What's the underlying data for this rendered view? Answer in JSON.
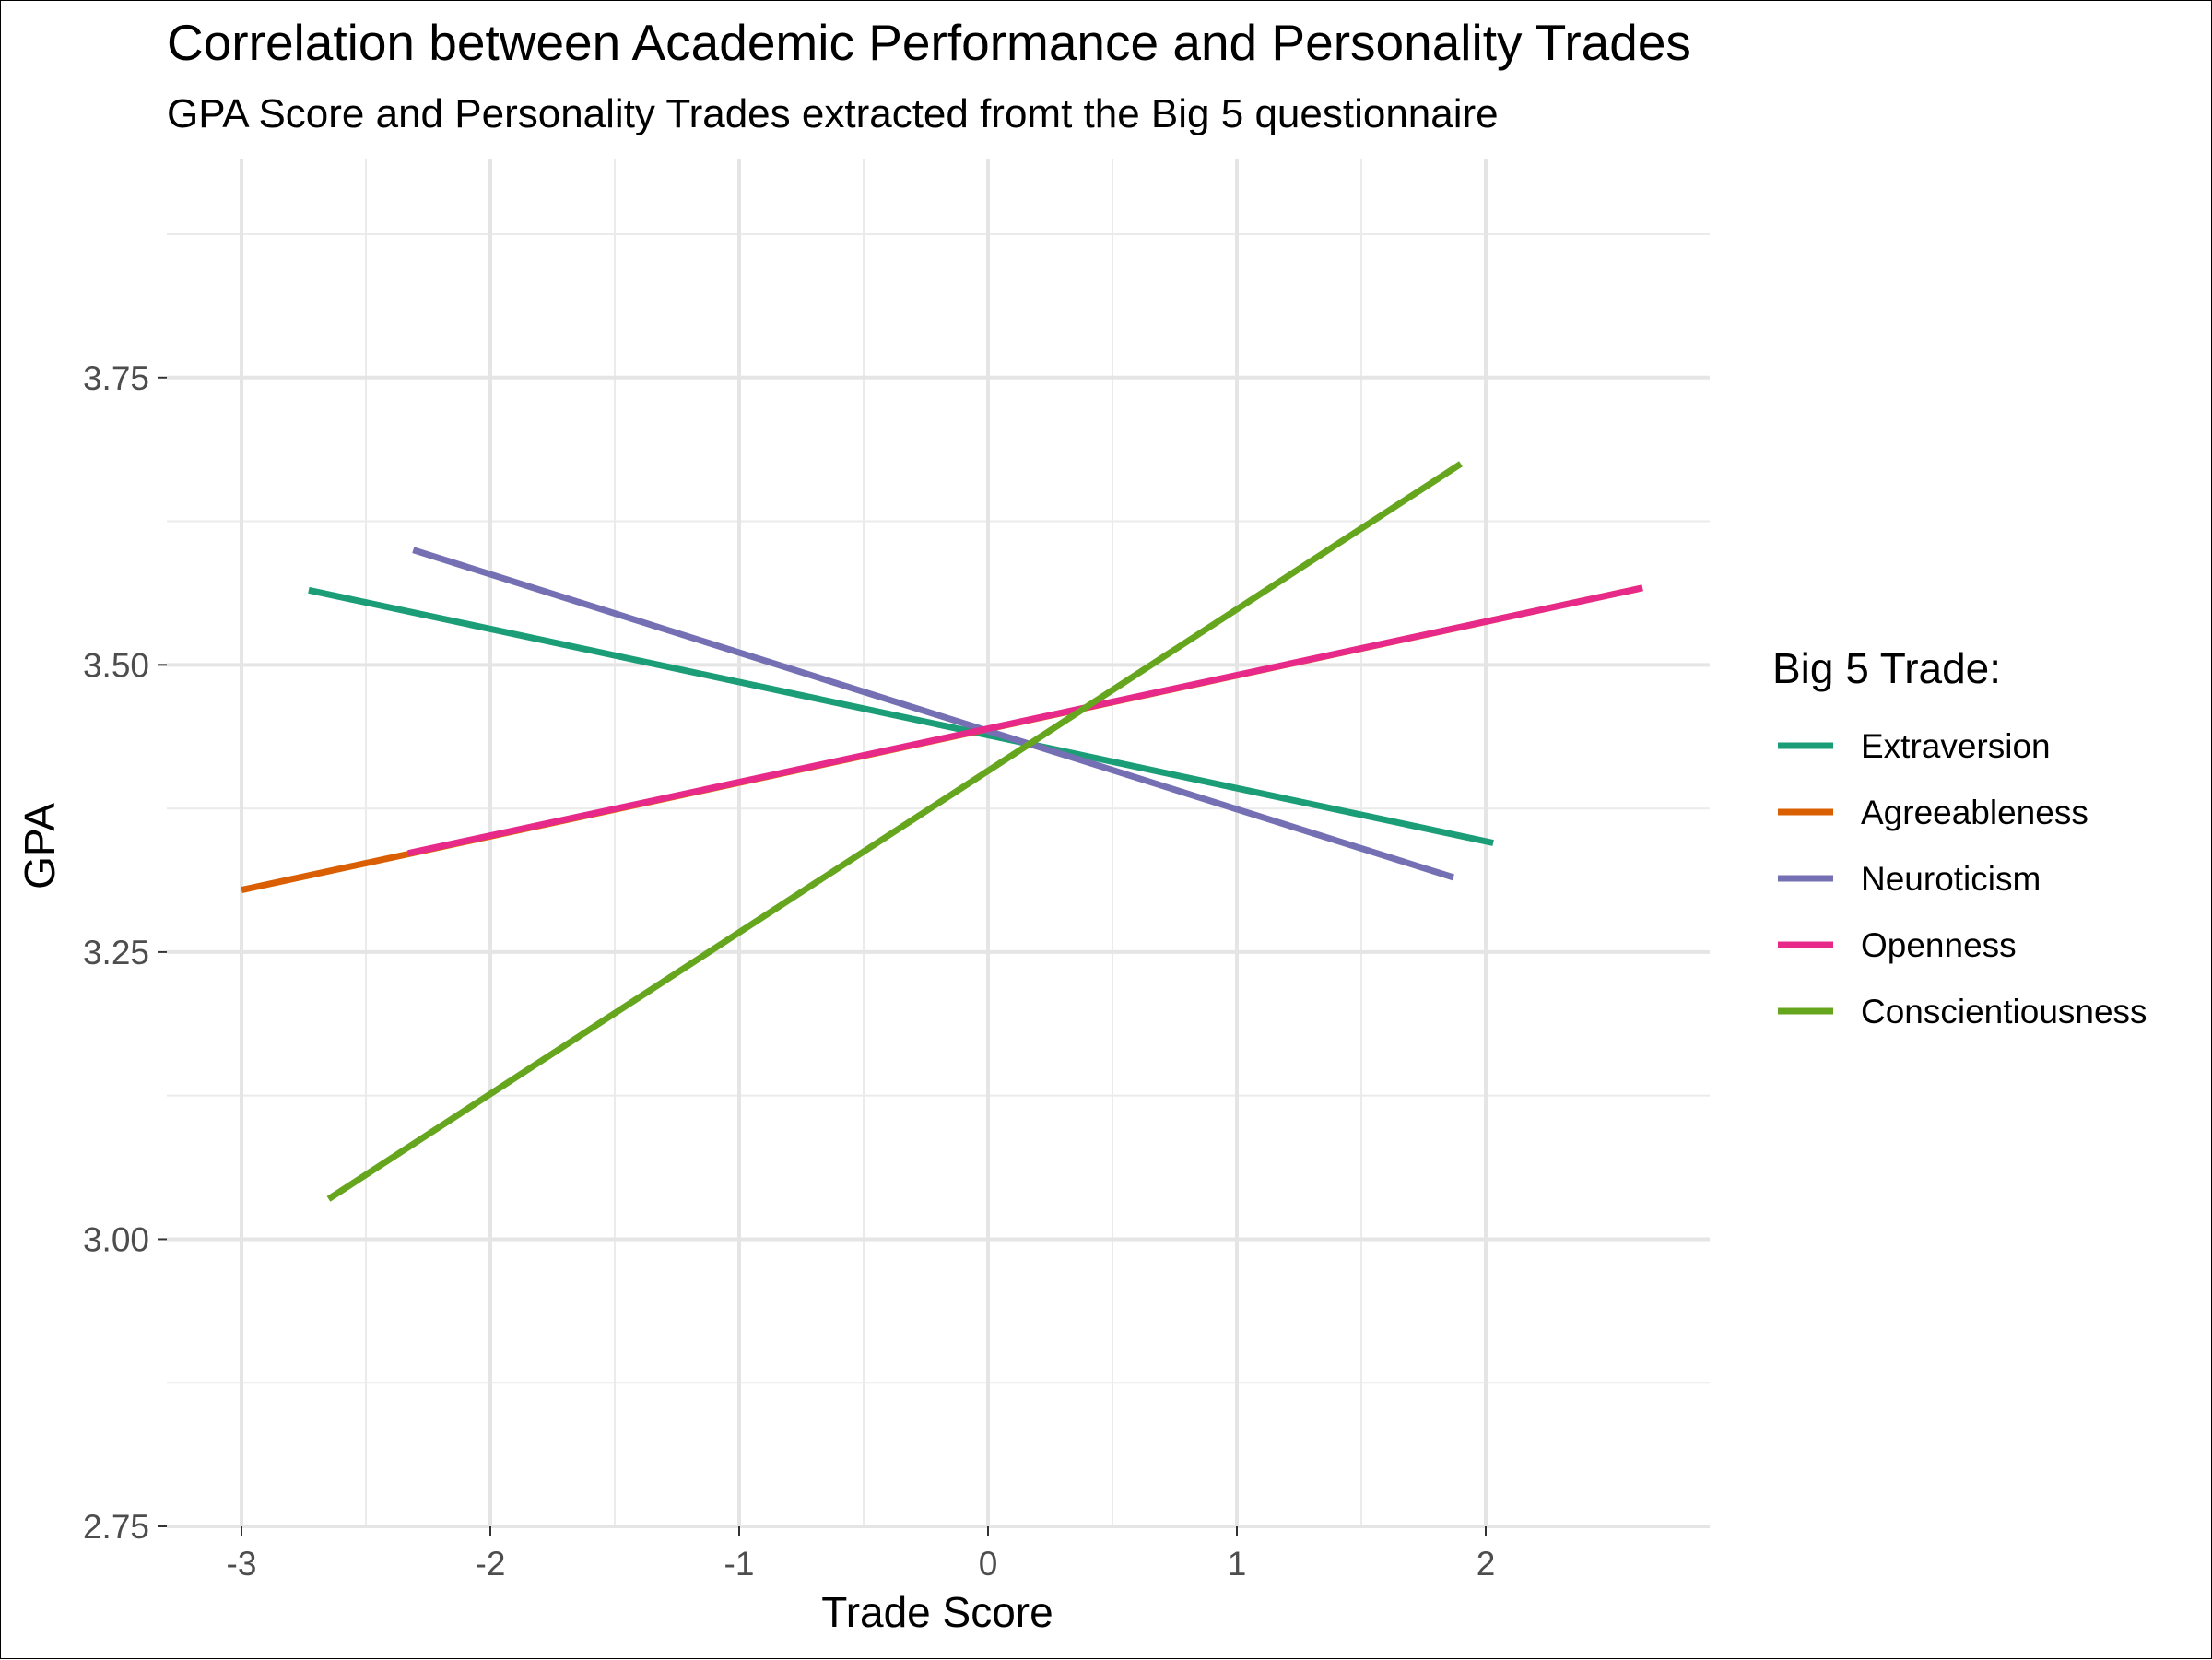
{
  "chart_data": {
    "type": "line",
    "title": "Correlation between Academic Performance and Personality Trades",
    "subtitle": "GPA Score and Personality Trades extracted fromt the Big 5 questionnaire",
    "xlabel": "Trade Score",
    "ylabel": "GPA",
    "xlim": [
      -3.3,
      2.9
    ],
    "ylim": [
      2.75,
      3.94
    ],
    "xticks": [
      -3,
      -2,
      -1,
      0,
      1,
      2
    ],
    "xtick_labels": [
      "-3",
      "-2",
      "-1",
      "0",
      "1",
      "2"
    ],
    "yticks": [
      2.75,
      3.0,
      3.25,
      3.5,
      3.75
    ],
    "ytick_labels": [
      "2.75",
      "3.00",
      "3.25",
      "3.50",
      "3.75"
    ],
    "grid": true,
    "legend_title": "Big 5 Trade:",
    "legend_position": "right",
    "series": [
      {
        "name": "Extraversion",
        "color": "#1b9e77",
        "x": [
          -2.73,
          2.03
        ],
        "y": [
          3.565,
          3.345
        ]
      },
      {
        "name": "Agreeableness",
        "color": "#d95f02",
        "x": [
          -3.0,
          2.63
        ],
        "y": [
          3.304,
          3.567
        ]
      },
      {
        "name": "Neuroticism",
        "color": "#7570b3",
        "x": [
          -2.31,
          1.87
        ],
        "y": [
          3.6,
          3.315
        ]
      },
      {
        "name": "Openness",
        "color": "#e7298a",
        "x": [
          -2.33,
          2.63
        ],
        "y": [
          3.336,
          3.567
        ]
      },
      {
        "name": "Conscientiousness",
        "color": "#66a61e",
        "x": [
          -2.65,
          1.9
        ],
        "y": [
          3.035,
          3.675
        ]
      }
    ]
  }
}
